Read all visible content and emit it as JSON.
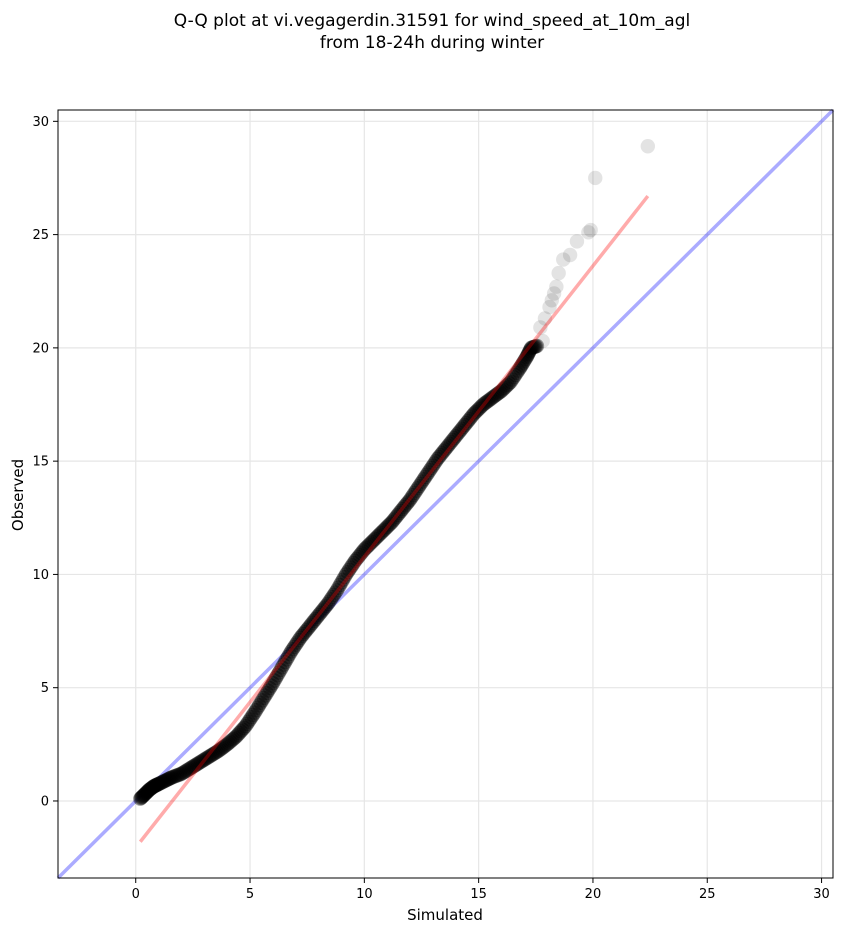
{
  "chart_data": {
    "type": "scatter",
    "title_line1": "Q-Q plot at vi.vegagerdin.31591 for wind_speed_at_10m_agl",
    "title_line2": "from 18-24h during winter",
    "xlabel": "Simulated",
    "ylabel": "Observed",
    "xlim": [
      -3.4,
      30.5
    ],
    "ylim": [
      -3.4,
      30.5
    ],
    "xticks": [
      0,
      5,
      10,
      15,
      20,
      25,
      30
    ],
    "yticks": [
      0,
      5,
      10,
      15,
      20,
      25,
      30
    ],
    "grid": true,
    "colors": {
      "points": "#000000",
      "fit_line": "#ff0000",
      "identity_line": "#0000ff"
    },
    "qq_curve": [
      [
        0.2,
        0.1
      ],
      [
        0.4,
        0.3
      ],
      [
        0.6,
        0.5
      ],
      [
        0.8,
        0.65
      ],
      [
        1.0,
        0.75
      ],
      [
        1.3,
        0.9
      ],
      [
        1.6,
        1.05
      ],
      [
        2.0,
        1.2
      ],
      [
        2.4,
        1.45
      ],
      [
        2.8,
        1.7
      ],
      [
        3.2,
        1.95
      ],
      [
        3.6,
        2.2
      ],
      [
        4.0,
        2.5
      ],
      [
        4.4,
        2.85
      ],
      [
        4.8,
        3.3
      ],
      [
        5.2,
        3.9
      ],
      [
        5.6,
        4.55
      ],
      [
        6.0,
        5.2
      ],
      [
        6.4,
        5.9
      ],
      [
        6.8,
        6.6
      ],
      [
        7.2,
        7.2
      ],
      [
        7.6,
        7.7
      ],
      [
        8.0,
        8.2
      ],
      [
        8.4,
        8.7
      ],
      [
        8.8,
        9.3
      ],
      [
        9.2,
        10.0
      ],
      [
        9.6,
        10.6
      ],
      [
        10.0,
        11.1
      ],
      [
        10.4,
        11.5
      ],
      [
        10.8,
        11.9
      ],
      [
        11.2,
        12.3
      ],
      [
        11.6,
        12.8
      ],
      [
        12.0,
        13.3
      ],
      [
        12.4,
        13.9
      ],
      [
        12.8,
        14.5
      ],
      [
        13.2,
        15.1
      ],
      [
        13.6,
        15.6
      ],
      [
        14.0,
        16.1
      ],
      [
        14.4,
        16.6
      ],
      [
        14.8,
        17.1
      ],
      [
        15.2,
        17.5
      ],
      [
        15.6,
        17.8
      ],
      [
        16.0,
        18.1
      ],
      [
        16.4,
        18.5
      ],
      [
        16.8,
        19.1
      ],
      [
        17.1,
        19.6
      ],
      [
        17.3,
        20.0
      ],
      [
        17.6,
        20.1
      ]
    ],
    "qq_tail": [
      [
        17.8,
        20.3
      ],
      [
        17.7,
        20.9
      ],
      [
        17.9,
        21.3
      ],
      [
        18.1,
        21.8
      ],
      [
        18.2,
        22.1
      ],
      [
        18.3,
        22.4
      ],
      [
        18.4,
        22.7
      ],
      [
        18.5,
        23.3
      ],
      [
        18.7,
        23.9
      ],
      [
        19.0,
        24.1
      ],
      [
        19.3,
        24.7
      ],
      [
        19.8,
        25.1
      ],
      [
        19.9,
        25.2
      ],
      [
        20.1,
        27.5
      ],
      [
        22.4,
        28.9
      ]
    ],
    "fit_line": {
      "x": [
        0.2,
        22.4
      ],
      "y": [
        -1.8,
        26.7
      ]
    },
    "identity_line": {
      "x": [
        -3.4,
        30.5
      ],
      "y": [
        -3.4,
        30.5
      ]
    }
  }
}
